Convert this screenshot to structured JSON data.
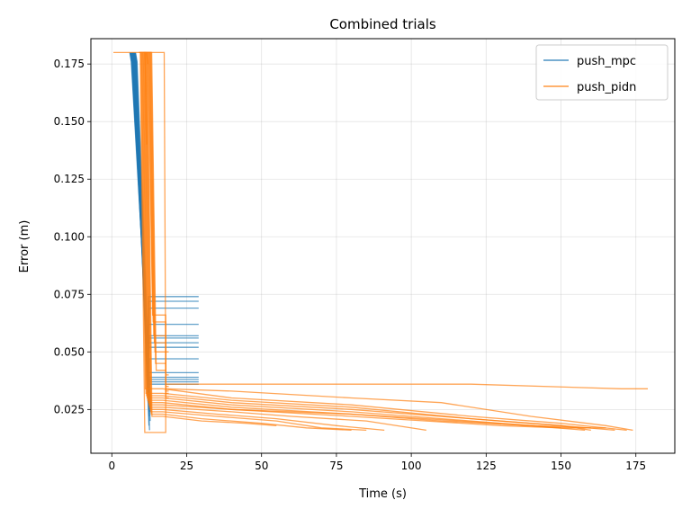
{
  "chart_data": {
    "type": "line",
    "title": "Combined trials",
    "xlabel": "Time (s)",
    "ylabel": "Error (m)",
    "xlim": [
      -7,
      188
    ],
    "ylim": [
      0.006,
      0.186
    ],
    "xticks": [
      0,
      25,
      50,
      75,
      100,
      125,
      150,
      175
    ],
    "xtick_labels": [
      "0",
      "25",
      "50",
      "75",
      "100",
      "125",
      "150",
      "175"
    ],
    "yticks": [
      0.025,
      0.05,
      0.075,
      0.1,
      0.125,
      0.15,
      0.175
    ],
    "ytick_labels": [
      "0.025",
      "0.050",
      "0.075",
      "0.100",
      "0.125",
      "0.150",
      "0.175"
    ],
    "grid": true,
    "legend_position": "top-right",
    "colors": {
      "push_mpc": "#1f77b4",
      "push_pidn": "#ff7f0e"
    },
    "series": [
      {
        "name": "push_mpc",
        "color": "#1f77b4",
        "trials": [
          [
            [
              6.0,
              0.18
            ],
            [
              6.5,
              0.176
            ],
            [
              12.0,
              0.052
            ],
            [
              12.3,
              0.074
            ],
            [
              29.0,
              0.074
            ]
          ],
          [
            [
              6.1,
              0.18
            ],
            [
              6.6,
              0.176
            ],
            [
              12.1,
              0.05
            ],
            [
              12.4,
              0.072
            ],
            [
              29.0,
              0.072
            ]
          ],
          [
            [
              6.2,
              0.18
            ],
            [
              6.7,
              0.176
            ],
            [
              12.2,
              0.048
            ],
            [
              12.5,
              0.069
            ],
            [
              29.0,
              0.069
            ]
          ],
          [
            [
              6.3,
              0.18
            ],
            [
              6.8,
              0.176
            ],
            [
              12.0,
              0.046
            ],
            [
              12.3,
              0.062
            ],
            [
              29.0,
              0.062
            ]
          ],
          [
            [
              6.4,
              0.18
            ],
            [
              6.9,
              0.176
            ],
            [
              12.1,
              0.044
            ],
            [
              12.4,
              0.057
            ],
            [
              29.0,
              0.057
            ]
          ],
          [
            [
              6.5,
              0.18
            ],
            [
              7.0,
              0.176
            ],
            [
              12.2,
              0.042
            ],
            [
              12.5,
              0.056
            ],
            [
              29.0,
              0.056
            ]
          ],
          [
            [
              6.6,
              0.18
            ],
            [
              7.1,
              0.176
            ],
            [
              12.0,
              0.04
            ],
            [
              12.3,
              0.054
            ],
            [
              29.0,
              0.054
            ]
          ],
          [
            [
              6.7,
              0.18
            ],
            [
              7.2,
              0.176
            ],
            [
              12.1,
              0.038
            ],
            [
              12.4,
              0.052
            ],
            [
              29.0,
              0.052
            ]
          ],
          [
            [
              6.8,
              0.18
            ],
            [
              7.3,
              0.176
            ],
            [
              12.2,
              0.036
            ],
            [
              12.5,
              0.047
            ],
            [
              29.0,
              0.047
            ]
          ],
          [
            [
              6.9,
              0.18
            ],
            [
              7.4,
              0.176
            ],
            [
              12.0,
              0.034
            ],
            [
              12.3,
              0.041
            ],
            [
              29.0,
              0.041
            ]
          ],
          [
            [
              7.0,
              0.18
            ],
            [
              7.5,
              0.176
            ],
            [
              12.1,
              0.032
            ],
            [
              12.4,
              0.039
            ],
            [
              29.0,
              0.039
            ]
          ],
          [
            [
              7.1,
              0.18
            ],
            [
              7.6,
              0.176
            ],
            [
              12.2,
              0.03
            ],
            [
              12.5,
              0.038
            ],
            [
              29.0,
              0.038
            ]
          ],
          [
            [
              7.2,
              0.18
            ],
            [
              7.7,
              0.176
            ],
            [
              12.0,
              0.03
            ],
            [
              12.3,
              0.037
            ],
            [
              29.0,
              0.037
            ]
          ],
          [
            [
              7.3,
              0.18
            ],
            [
              7.8,
              0.176
            ],
            [
              12.1,
              0.028
            ],
            [
              12.4,
              0.036
            ],
            [
              29.0,
              0.036
            ]
          ],
          [
            [
              7.4,
              0.18
            ],
            [
              7.9,
              0.176
            ],
            [
              12.4,
              0.018
            ]
          ],
          [
            [
              7.5,
              0.18
            ],
            [
              8.0,
              0.176
            ],
            [
              12.6,
              0.016
            ]
          ],
          [
            [
              7.6,
              0.18
            ],
            [
              8.1,
              0.176
            ],
            [
              12.8,
              0.02
            ]
          ],
          [
            [
              7.7,
              0.18
            ],
            [
              8.2,
              0.176
            ],
            [
              12.5,
              0.022
            ]
          ],
          [
            [
              7.8,
              0.18
            ],
            [
              8.3,
              0.176
            ],
            [
              12.7,
              0.024
            ]
          ],
          [
            [
              7.9,
              0.18
            ],
            [
              8.4,
              0.176
            ],
            [
              12.9,
              0.026
            ]
          ]
        ]
      },
      {
        "name": "push_pidn",
        "color": "#ff7f0e",
        "trials": [
          [
            [
              0.5,
              0.18
            ],
            [
              17.5,
              0.18
            ],
            [
              18.0,
              0.036
            ],
            [
              40,
              0.036
            ],
            [
              80,
              0.036
            ],
            [
              120,
              0.036
            ],
            [
              170,
              0.034
            ],
            [
              179,
              0.034
            ]
          ],
          [
            [
              9.0,
              0.18
            ],
            [
              9.5,
              0.18
            ],
            [
              11.0,
              0.015
            ],
            [
              18.0,
              0.015
            ],
            [
              18.0,
              0.034
            ],
            [
              40,
              0.033
            ],
            [
              80,
              0.03
            ],
            [
              110,
              0.028
            ],
            [
              140,
              0.022
            ],
            [
              165,
              0.018
            ],
            [
              174,
              0.016
            ]
          ],
          [
            [
              9.2,
              0.18
            ],
            [
              9.7,
              0.18
            ],
            [
              11.2,
              0.034
            ],
            [
              17.0,
              0.034
            ],
            [
              40,
              0.03
            ],
            [
              80,
              0.027
            ],
            [
              120,
              0.022
            ],
            [
              150,
              0.019
            ],
            [
              172,
              0.016
            ]
          ],
          [
            [
              9.4,
              0.18
            ],
            [
              9.9,
              0.18
            ],
            [
              11.4,
              0.032
            ],
            [
              17.0,
              0.032
            ],
            [
              40,
              0.029
            ],
            [
              80,
              0.026
            ],
            [
              120,
              0.021
            ],
            [
              150,
              0.018
            ],
            [
              168,
              0.016
            ]
          ],
          [
            [
              9.6,
              0.18
            ],
            [
              10.1,
              0.18
            ],
            [
              11.6,
              0.031
            ],
            [
              17.0,
              0.031
            ],
            [
              40,
              0.028
            ],
            [
              80,
              0.025
            ],
            [
              120,
              0.021
            ],
            [
              150,
              0.018
            ],
            [
              160,
              0.016
            ]
          ],
          [
            [
              9.8,
              0.18
            ],
            [
              10.3,
              0.18
            ],
            [
              11.8,
              0.03
            ],
            [
              17.0,
              0.03
            ],
            [
              40,
              0.027
            ],
            [
              80,
              0.024
            ],
            [
              120,
              0.02
            ],
            [
              150,
              0.017
            ],
            [
              165,
              0.017
            ]
          ],
          [
            [
              10.0,
              0.18
            ],
            [
              10.5,
              0.18
            ],
            [
              12.0,
              0.029
            ],
            [
              17.0,
              0.029
            ],
            [
              40,
              0.026
            ],
            [
              80,
              0.023
            ],
            [
              110,
              0.02
            ],
            [
              140,
              0.018
            ],
            [
              160,
              0.017
            ]
          ],
          [
            [
              10.2,
              0.18
            ],
            [
              10.7,
              0.18
            ],
            [
              12.2,
              0.028
            ],
            [
              17.0,
              0.028
            ],
            [
              40,
              0.025
            ],
            [
              80,
              0.023
            ],
            [
              105,
              0.021
            ],
            [
              140,
              0.018
            ],
            [
              158,
              0.016
            ]
          ],
          [
            [
              10.4,
              0.18
            ],
            [
              10.9,
              0.18
            ],
            [
              12.4,
              0.027
            ],
            [
              17.0,
              0.027
            ],
            [
              40,
              0.025
            ],
            [
              80,
              0.022
            ],
            [
              105,
              0.02
            ],
            [
              130,
              0.018
            ],
            [
              150,
              0.017
            ]
          ],
          [
            [
              10.6,
              0.18
            ],
            [
              11.1,
              0.18
            ],
            [
              12.6,
              0.026
            ],
            [
              17.0,
              0.026
            ],
            [
              40,
              0.024
            ],
            [
              60,
              0.022
            ],
            [
              85,
              0.02
            ],
            [
              105,
              0.016
            ]
          ],
          [
            [
              10.8,
              0.18
            ],
            [
              11.3,
              0.18
            ],
            [
              12.8,
              0.025
            ],
            [
              17.0,
              0.025
            ],
            [
              35,
              0.023
            ],
            [
              55,
              0.021
            ],
            [
              75,
              0.018
            ],
            [
              91,
              0.016
            ]
          ],
          [
            [
              11.0,
              0.18
            ],
            [
              11.5,
              0.18
            ],
            [
              13.0,
              0.024
            ],
            [
              17.0,
              0.024
            ],
            [
              35,
              0.022
            ],
            [
              55,
              0.02
            ],
            [
              70,
              0.017
            ],
            [
              85,
              0.016
            ]
          ],
          [
            [
              11.2,
              0.18
            ],
            [
              11.7,
              0.18
            ],
            [
              13.2,
              0.023
            ],
            [
              17.0,
              0.023
            ],
            [
              30,
              0.021
            ],
            [
              50,
              0.019
            ],
            [
              65,
              0.017
            ],
            [
              80,
              0.016
            ]
          ],
          [
            [
              11.4,
              0.18
            ],
            [
              11.9,
              0.18
            ],
            [
              13.4,
              0.022
            ],
            [
              17.0,
              0.022
            ],
            [
              30,
              0.02
            ],
            [
              45,
              0.019
            ],
            [
              55,
              0.018
            ]
          ],
          [
            [
              11.6,
              0.18
            ],
            [
              12.1,
              0.18
            ],
            [
              13.6,
              0.066
            ],
            [
              18.0,
              0.066
            ],
            [
              18.0,
              0.05
            ],
            [
              19,
              0.05
            ]
          ],
          [
            [
              11.8,
              0.18
            ],
            [
              12.3,
              0.18
            ],
            [
              13.8,
              0.063
            ],
            [
              18.0,
              0.063
            ],
            [
              18.0,
              0.04
            ],
            [
              19,
              0.04
            ]
          ],
          [
            [
              12.0,
              0.18
            ],
            [
              12.5,
              0.18
            ],
            [
              14.0,
              0.057
            ],
            [
              18.0,
              0.057
            ],
            [
              18.0,
              0.035
            ],
            [
              19,
              0.035
            ]
          ],
          [
            [
              12.2,
              0.18
            ],
            [
              12.7,
              0.18
            ],
            [
              14.2,
              0.054
            ],
            [
              18.0,
              0.054
            ],
            [
              18.0,
              0.033
            ],
            [
              19,
              0.033
            ]
          ],
          [
            [
              12.4,
              0.18
            ],
            [
              12.9,
              0.18
            ],
            [
              14.4,
              0.05
            ],
            [
              18.0,
              0.05
            ],
            [
              18.0,
              0.032
            ],
            [
              19,
              0.032
            ]
          ],
          [
            [
              12.6,
              0.18
            ],
            [
              13.1,
              0.18
            ],
            [
              14.6,
              0.045
            ],
            [
              18.0,
              0.045
            ],
            [
              18.0,
              0.03
            ],
            [
              19,
              0.03
            ]
          ],
          [
            [
              12.8,
              0.18
            ],
            [
              13.3,
              0.18
            ],
            [
              14.8,
              0.042
            ],
            [
              18.0,
              0.042
            ]
          ],
          [
            [
              10.6,
              0.18
            ],
            [
              11.1,
              0.18
            ],
            [
              11.6,
              0.14
            ]
          ],
          [
            [
              10.8,
              0.18
            ],
            [
              11.6,
              0.18
            ],
            [
              12.0,
              0.175
            ]
          ]
        ]
      }
    ]
  }
}
